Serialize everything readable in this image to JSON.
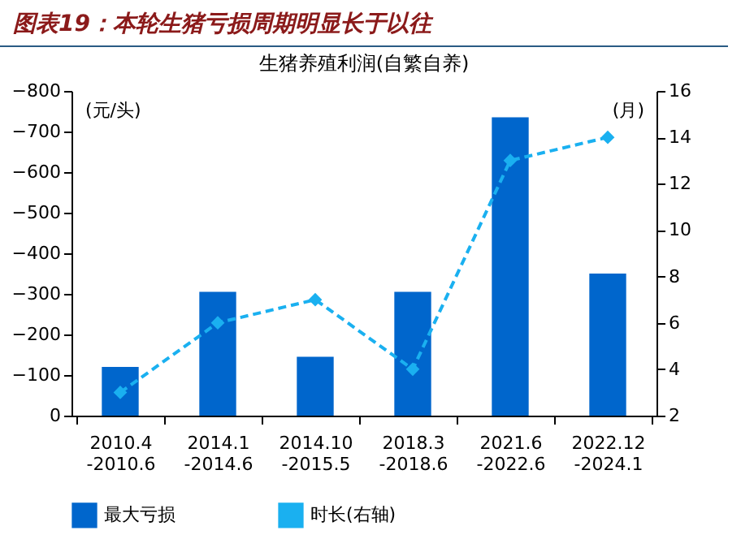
{
  "chart_data": {
    "type": "bar",
    "title": "图表19：本轮生猪亏损周期明显长于以往",
    "subtitle": "生猪养殖利润(自繁自养)",
    "ylabel": "(元/头)",
    "y2label": "(月)",
    "categories": [
      "2010.4\n-2010.6",
      "2014.1\n-2014.6",
      "2014.10\n-2015.5",
      "2018.3\n-2018.6",
      "2021.6\n-2022.6",
      "2022.12\n-2024.1"
    ],
    "series": [
      {
        "name": "最大亏损",
        "color": "#0066cc",
        "values": [
          -120,
          -305,
          -145,
          -305,
          -735,
          -350
        ]
      },
      {
        "name": "时长(右轴)",
        "type": "line",
        "axis": "y2",
        "color": "#1ab0f0",
        "values": [
          3,
          6,
          7,
          4,
          13,
          14
        ],
        "marker": "diamond",
        "line_style": "dashed"
      }
    ],
    "ylim": [
      0,
      -800
    ],
    "yticks": [
      -800,
      -700,
      -600,
      -500,
      -400,
      -300,
      -200,
      -100,
      0
    ],
    "y2lim": [
      2,
      16
    ],
    "y2ticks": [
      2,
      4,
      6,
      8,
      10,
      12,
      14,
      16
    ],
    "grid": false,
    "legend": "bottom"
  }
}
